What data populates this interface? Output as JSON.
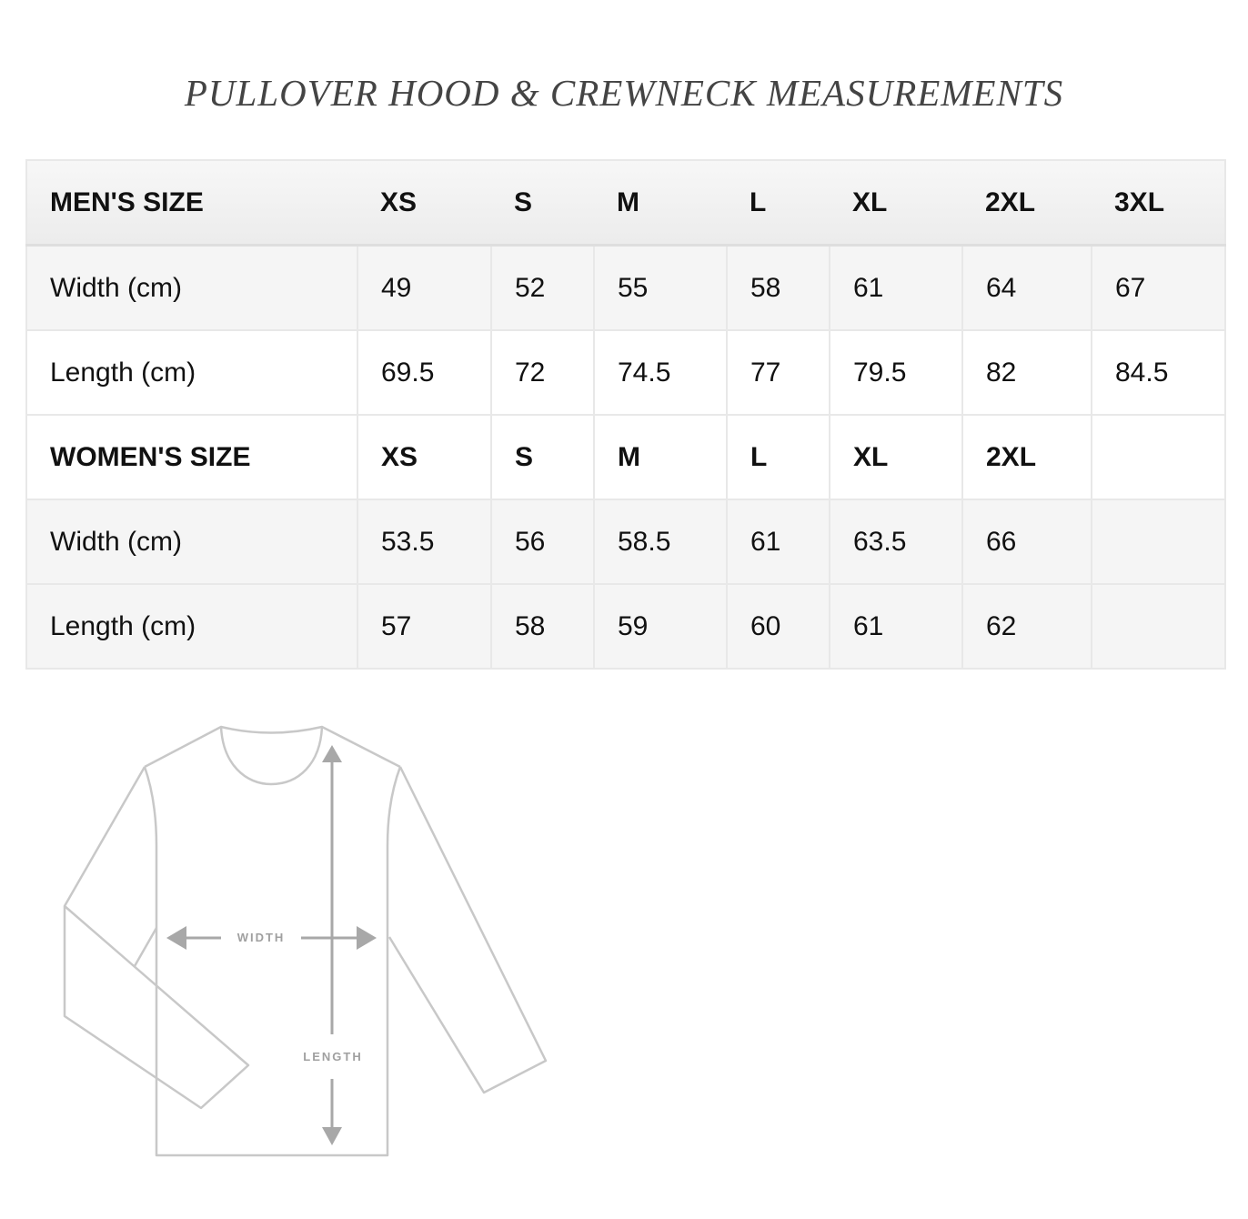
{
  "title": "PULLOVER HOOD & CREWNECK MEASUREMENTS",
  "mens": {
    "header": [
      "MEN'S SIZE",
      "XS",
      "S",
      "M",
      "L",
      "XL",
      "2XL",
      "3XL"
    ],
    "width": [
      "Width (cm)",
      "49",
      "52",
      "55",
      "58",
      "61",
      "64",
      "67"
    ],
    "length": [
      "Length (cm)",
      "69.5",
      "72",
      "74.5",
      "77",
      "79.5",
      "82",
      "84.5"
    ]
  },
  "womens": {
    "header": [
      "WOMEN'S SIZE",
      "XS",
      "S",
      "M",
      "L",
      "XL",
      "2XL",
      ""
    ],
    "width": [
      "Width (cm)",
      "53.5",
      "56",
      "58.5",
      "61",
      "63.5",
      "66",
      ""
    ],
    "length": [
      "Length (cm)",
      "57",
      "58",
      "59",
      "60",
      "61",
      "62",
      ""
    ]
  },
  "diagram": {
    "width_label": "WIDTH",
    "length_label": "LENGTH"
  }
}
